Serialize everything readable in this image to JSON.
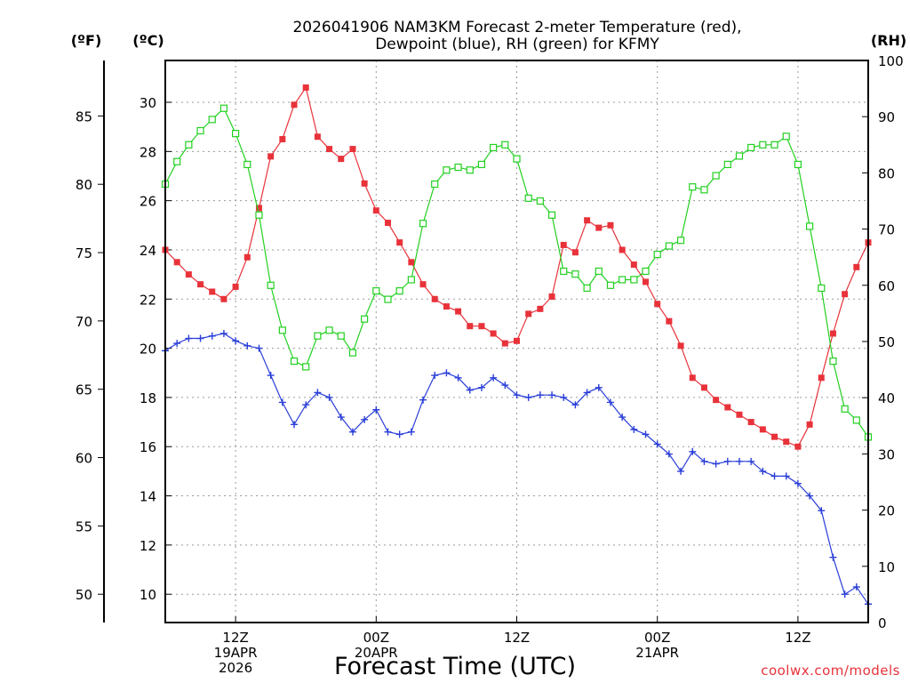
{
  "chart_data": {
    "type": "line",
    "title_line1": "2026041906 NAM3KM Forecast 2-meter Temperature (red),",
    "title_line2": "Dewpoint (blue), RH (green) for KFMY",
    "axis_unit_f": "(ºF)",
    "axis_unit_c": "(ºC)",
    "axis_unit_rh": "(RH)",
    "xlabel": "Forecast Time (UTC)",
    "credit": "coolwx.com/models",
    "x_hours": [
      0,
      1,
      2,
      3,
      4,
      5,
      6,
      7,
      8,
      9,
      10,
      11,
      12,
      13,
      14,
      15,
      16,
      17,
      18,
      19,
      20,
      21,
      22,
      23,
      24,
      25,
      26,
      27,
      28,
      29,
      30,
      31,
      32,
      33,
      34,
      35,
      36,
      37,
      38,
      39,
      40,
      41,
      42,
      43,
      44,
      45,
      46,
      47,
      48,
      49,
      50,
      51,
      52,
      53,
      54,
      55,
      56,
      57,
      58,
      59,
      60
    ],
    "xlim": [
      0,
      60
    ],
    "ylim_c": [
      8.85,
      31.7
    ],
    "ylim_rh": [
      0,
      100
    ],
    "f_ticks": [
      50,
      55,
      60,
      65,
      70,
      75,
      80,
      85
    ],
    "c_ticks": [
      10,
      12,
      14,
      16,
      18,
      20,
      22,
      24,
      26,
      28,
      30
    ],
    "rh_ticks": [
      0,
      10,
      20,
      30,
      40,
      50,
      60,
      70,
      80,
      90,
      100
    ],
    "x_ticks": [
      {
        "hour": 6,
        "lines": [
          "12Z",
          "19APR",
          "2026"
        ]
      },
      {
        "hour": 18,
        "lines": [
          "00Z",
          "20APR"
        ]
      },
      {
        "hour": 30,
        "lines": [
          "12Z"
        ]
      },
      {
        "hour": 42,
        "lines": [
          "00Z",
          "21APR"
        ]
      },
      {
        "hour": 54,
        "lines": [
          "12Z"
        ]
      }
    ],
    "series": [
      {
        "name": "2-meter Temperature",
        "unit": "C",
        "color": "#e8323a",
        "marker": "filled-square",
        "values": [
          24.0,
          23.5,
          23.0,
          22.6,
          22.3,
          22.0,
          22.5,
          23.7,
          25.7,
          27.8,
          28.5,
          29.9,
          30.6,
          28.6,
          28.1,
          27.7,
          28.1,
          26.7,
          25.6,
          25.1,
          24.3,
          23.5,
          22.6,
          22.0,
          21.7,
          21.5,
          20.9,
          20.9,
          20.6,
          20.2,
          20.3,
          21.4,
          21.6,
          22.1,
          24.2,
          23.9,
          25.2,
          24.9,
          25.0,
          24.0,
          23.4,
          22.7,
          21.8,
          21.1,
          20.1,
          18.8,
          18.4,
          17.9,
          17.6,
          17.3,
          17.0,
          16.7,
          16.4,
          16.2,
          16.0,
          16.9,
          18.8,
          20.6,
          22.2,
          23.3,
          24.3
        ]
      },
      {
        "name": "Dewpoint",
        "unit": "C",
        "color": "#2a3ed8",
        "marker": "plus",
        "values": [
          19.9,
          20.2,
          20.4,
          20.4,
          20.5,
          20.6,
          20.3,
          20.1,
          20.0,
          18.9,
          17.8,
          16.9,
          17.7,
          18.2,
          18.0,
          17.2,
          16.6,
          17.1,
          17.5,
          16.6,
          16.5,
          16.6,
          17.9,
          18.9,
          19.0,
          18.8,
          18.3,
          18.4,
          18.8,
          18.5,
          18.1,
          18.0,
          18.1,
          18.1,
          18.0,
          17.7,
          18.2,
          18.4,
          17.8,
          17.2,
          16.7,
          16.5,
          16.1,
          15.7,
          15.0,
          15.8,
          15.4,
          15.3,
          15.4,
          15.4,
          15.4,
          15.0,
          14.8,
          14.8,
          14.5,
          14.0,
          13.4,
          11.5,
          10.0,
          10.3,
          9.6
        ]
      },
      {
        "name": "RH",
        "unit": "%",
        "color": "#22d020",
        "marker": "open-square",
        "values": [
          78.0,
          82.0,
          85.0,
          87.5,
          89.5,
          91.5,
          87.0,
          81.5,
          72.5,
          60.0,
          52.0,
          46.5,
          45.5,
          51.0,
          52.0,
          51.0,
          48.0,
          54.0,
          59.0,
          57.5,
          59.0,
          61.0,
          71.0,
          78.0,
          80.5,
          81.0,
          80.5,
          81.5,
          84.5,
          85.0,
          82.5,
          75.5,
          75.0,
          72.5,
          62.5,
          62.0,
          59.5,
          62.5,
          60.0,
          61.0,
          61.0,
          62.5,
          65.5,
          67.0,
          68.0,
          77.5,
          77.0,
          79.5,
          81.5,
          83.0,
          84.5,
          85.0,
          85.0,
          86.5,
          81.5,
          70.5,
          59.5,
          46.5,
          38.0,
          36.0,
          33.0
        ]
      }
    ]
  }
}
